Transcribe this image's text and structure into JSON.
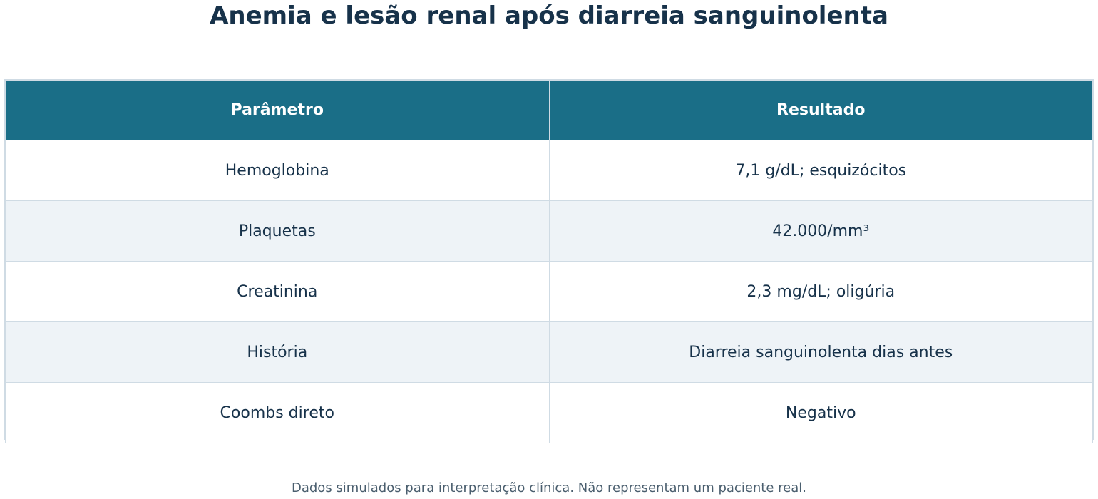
{
  "title": "Anemia e lesão renal após diarreia sanguinolenta",
  "footnote": "Dados simulados para interpretação clínica. Não representam um paciente real.",
  "colors": {
    "header_bg": "#1a6e87",
    "header_text": "#ffffff",
    "body_text": "#17324a",
    "stripe": "#eef3f7",
    "border": "#cfdbe4",
    "footnote_text": "#4a5e6e"
  },
  "chart_data": {
    "type": "table",
    "title": "Anemia e lesão renal após diarreia sanguinolenta",
    "columns": [
      "Parâmetro",
      "Resultado"
    ],
    "rows": [
      [
        "Hemoglobina",
        "7,1 g/dL; esquizócitos"
      ],
      [
        "Plaquetas",
        "42.000/mm³"
      ],
      [
        "Creatinina",
        "2,3 mg/dL; oligúria"
      ],
      [
        "História",
        "Diarreia sanguinolenta dias antes"
      ],
      [
        "Coombs direto",
        "Negativo"
      ]
    ]
  }
}
